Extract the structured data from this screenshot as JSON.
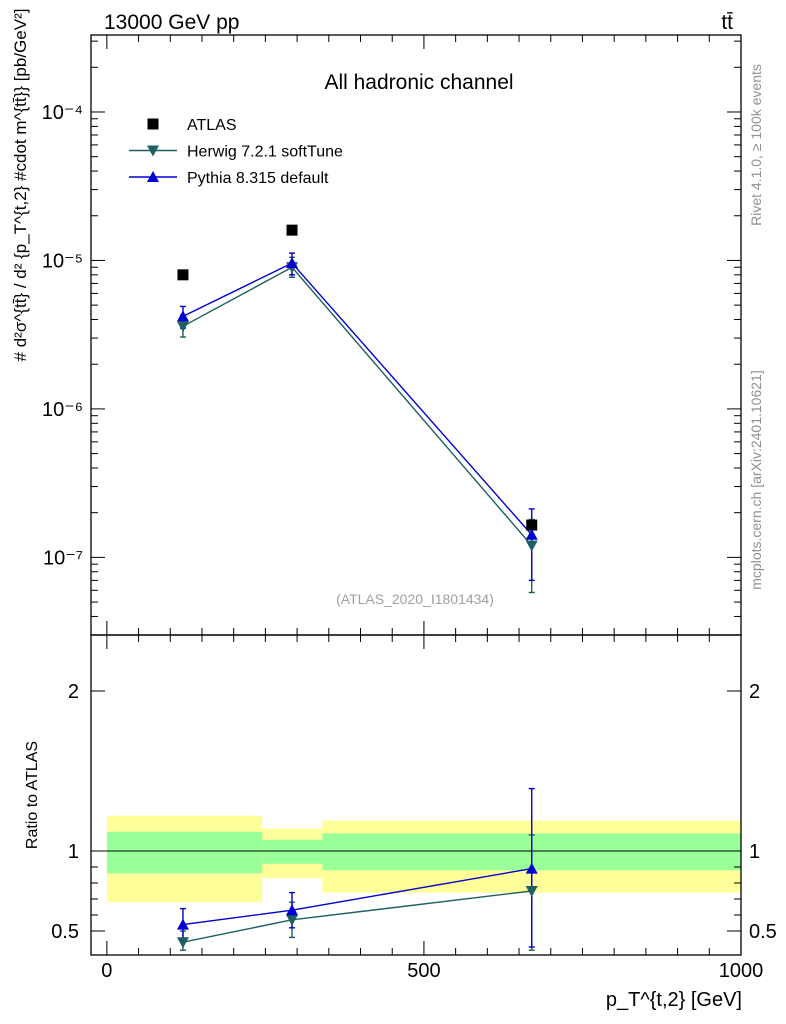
{
  "header": {
    "energy_label": "13000 GeV pp",
    "process_label": "tt̄"
  },
  "side_labels": {
    "rivet": "Rivet 4.1.0, ≥ 100k events",
    "mcplots": "mcplots.cern.ch [arXiv:2401.10621]"
  },
  "chart_data": [
    {
      "type": "line",
      "title": "All hadronic channel",
      "watermark": "(ATLAS_2020_I1801434)",
      "ylabel": "# d²σ^{tt̄} / d² {p_T^{t,2} #cdot m^{tt̄}} [pb/GeV²]",
      "yscale": "log",
      "ylim": [
        3e-08,
        0.00033
      ],
      "xlim": [
        -25,
        1000
      ],
      "y_ticks": [
        {
          "value": 0.0001,
          "label": "10⁻⁴"
        },
        {
          "value": 1e-05,
          "label": "10⁻⁵"
        },
        {
          "value": 1e-06,
          "label": "10⁻⁶"
        },
        {
          "value": 1e-07,
          "label": "10⁻⁷"
        }
      ],
      "x": [
        120,
        292,
        670
      ],
      "series": [
        {
          "name": "ATLAS",
          "marker": "square",
          "color": "#000000",
          "values": [
            8e-06,
            1.6e-05,
            1.65e-07
          ]
        },
        {
          "name": "Herwig 7.2.1 softTune",
          "marker": "triangle-down",
          "color": "#1f5f63",
          "values": [
            3.6e-06,
            9e-06,
            1.2e-07
          ],
          "err_low": [
            3.05e-06,
            7.7e-06,
            5.8e-08
          ],
          "err_high": [
            4.3e-06,
            1.05e-05,
            1.8e-07
          ]
        },
        {
          "name": "Pythia 8.315 default",
          "marker": "triangle-up",
          "color": "#0000d0",
          "values": [
            4.2e-06,
            9.6e-06,
            1.42e-07
          ],
          "err_low": [
            3.5e-06,
            8e-06,
            7e-08
          ],
          "err_high": [
            4.9e-06,
            1.12e-05,
            2.12e-07
          ]
        }
      ]
    },
    {
      "type": "line",
      "ylabel": "Ratio to ATLAS",
      "xlabel": "p_T^{t,2} [GeV]",
      "ylim": [
        0.35,
        2.35
      ],
      "xlim": [
        -25,
        1000
      ],
      "y_ticks": [
        {
          "value": 0.5,
          "label": "0.5"
        },
        {
          "value": 1,
          "label": "1"
        },
        {
          "value": 2,
          "label": "2"
        }
      ],
      "x_ticks": [
        {
          "value": 0,
          "label": "0"
        },
        {
          "value": 500,
          "label": "500"
        },
        {
          "value": 1000,
          "label": "1000"
        }
      ],
      "bands": [
        {
          "x0": 0,
          "x1": 245,
          "stat_low": 0.86,
          "stat_high": 1.12,
          "total_low": 0.68,
          "total_high": 1.22
        },
        {
          "x0": 245,
          "x1": 340,
          "stat_low": 0.92,
          "stat_high": 1.07,
          "total_low": 0.83,
          "total_high": 1.14
        },
        {
          "x0": 340,
          "x1": 1000,
          "stat_low": 0.88,
          "stat_high": 1.11,
          "total_low": 0.74,
          "total_high": 1.19
        }
      ],
      "x": [
        120,
        292,
        670
      ],
      "series": [
        {
          "name": "Herwig 7.2.1 softTune",
          "marker": "triangle-down",
          "color": "#1f5f63",
          "values": [
            0.43,
            0.57,
            0.75
          ],
          "err_low": [
            0.38,
            0.46,
            0.38
          ],
          "err_high": [
            0.5,
            0.68,
            1.1
          ]
        },
        {
          "name": "Pythia 8.315 default",
          "marker": "triangle-up",
          "color": "#0000d0",
          "values": [
            0.54,
            0.63,
            0.89
          ],
          "err_low": [
            0.44,
            0.52,
            0.4
          ],
          "err_high": [
            0.64,
            0.74,
            1.39
          ]
        }
      ]
    }
  ]
}
